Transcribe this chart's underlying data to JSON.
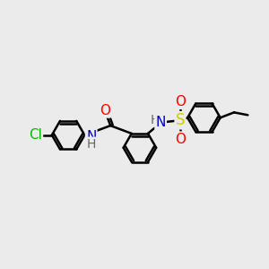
{
  "background_color": "#ebebeb",
  "bond_color": "#000000",
  "bond_width": 1.8,
  "atom_colors": {
    "C": "#000000",
    "N": "#0000cc",
    "O": "#ff0000",
    "S": "#cccc00",
    "Cl": "#00bb00",
    "H": "#666666"
  },
  "font_size": 10,
  "fig_width": 3.0,
  "fig_height": 3.0,
  "xlim": [
    0,
    10
  ],
  "ylim": [
    0,
    10
  ]
}
